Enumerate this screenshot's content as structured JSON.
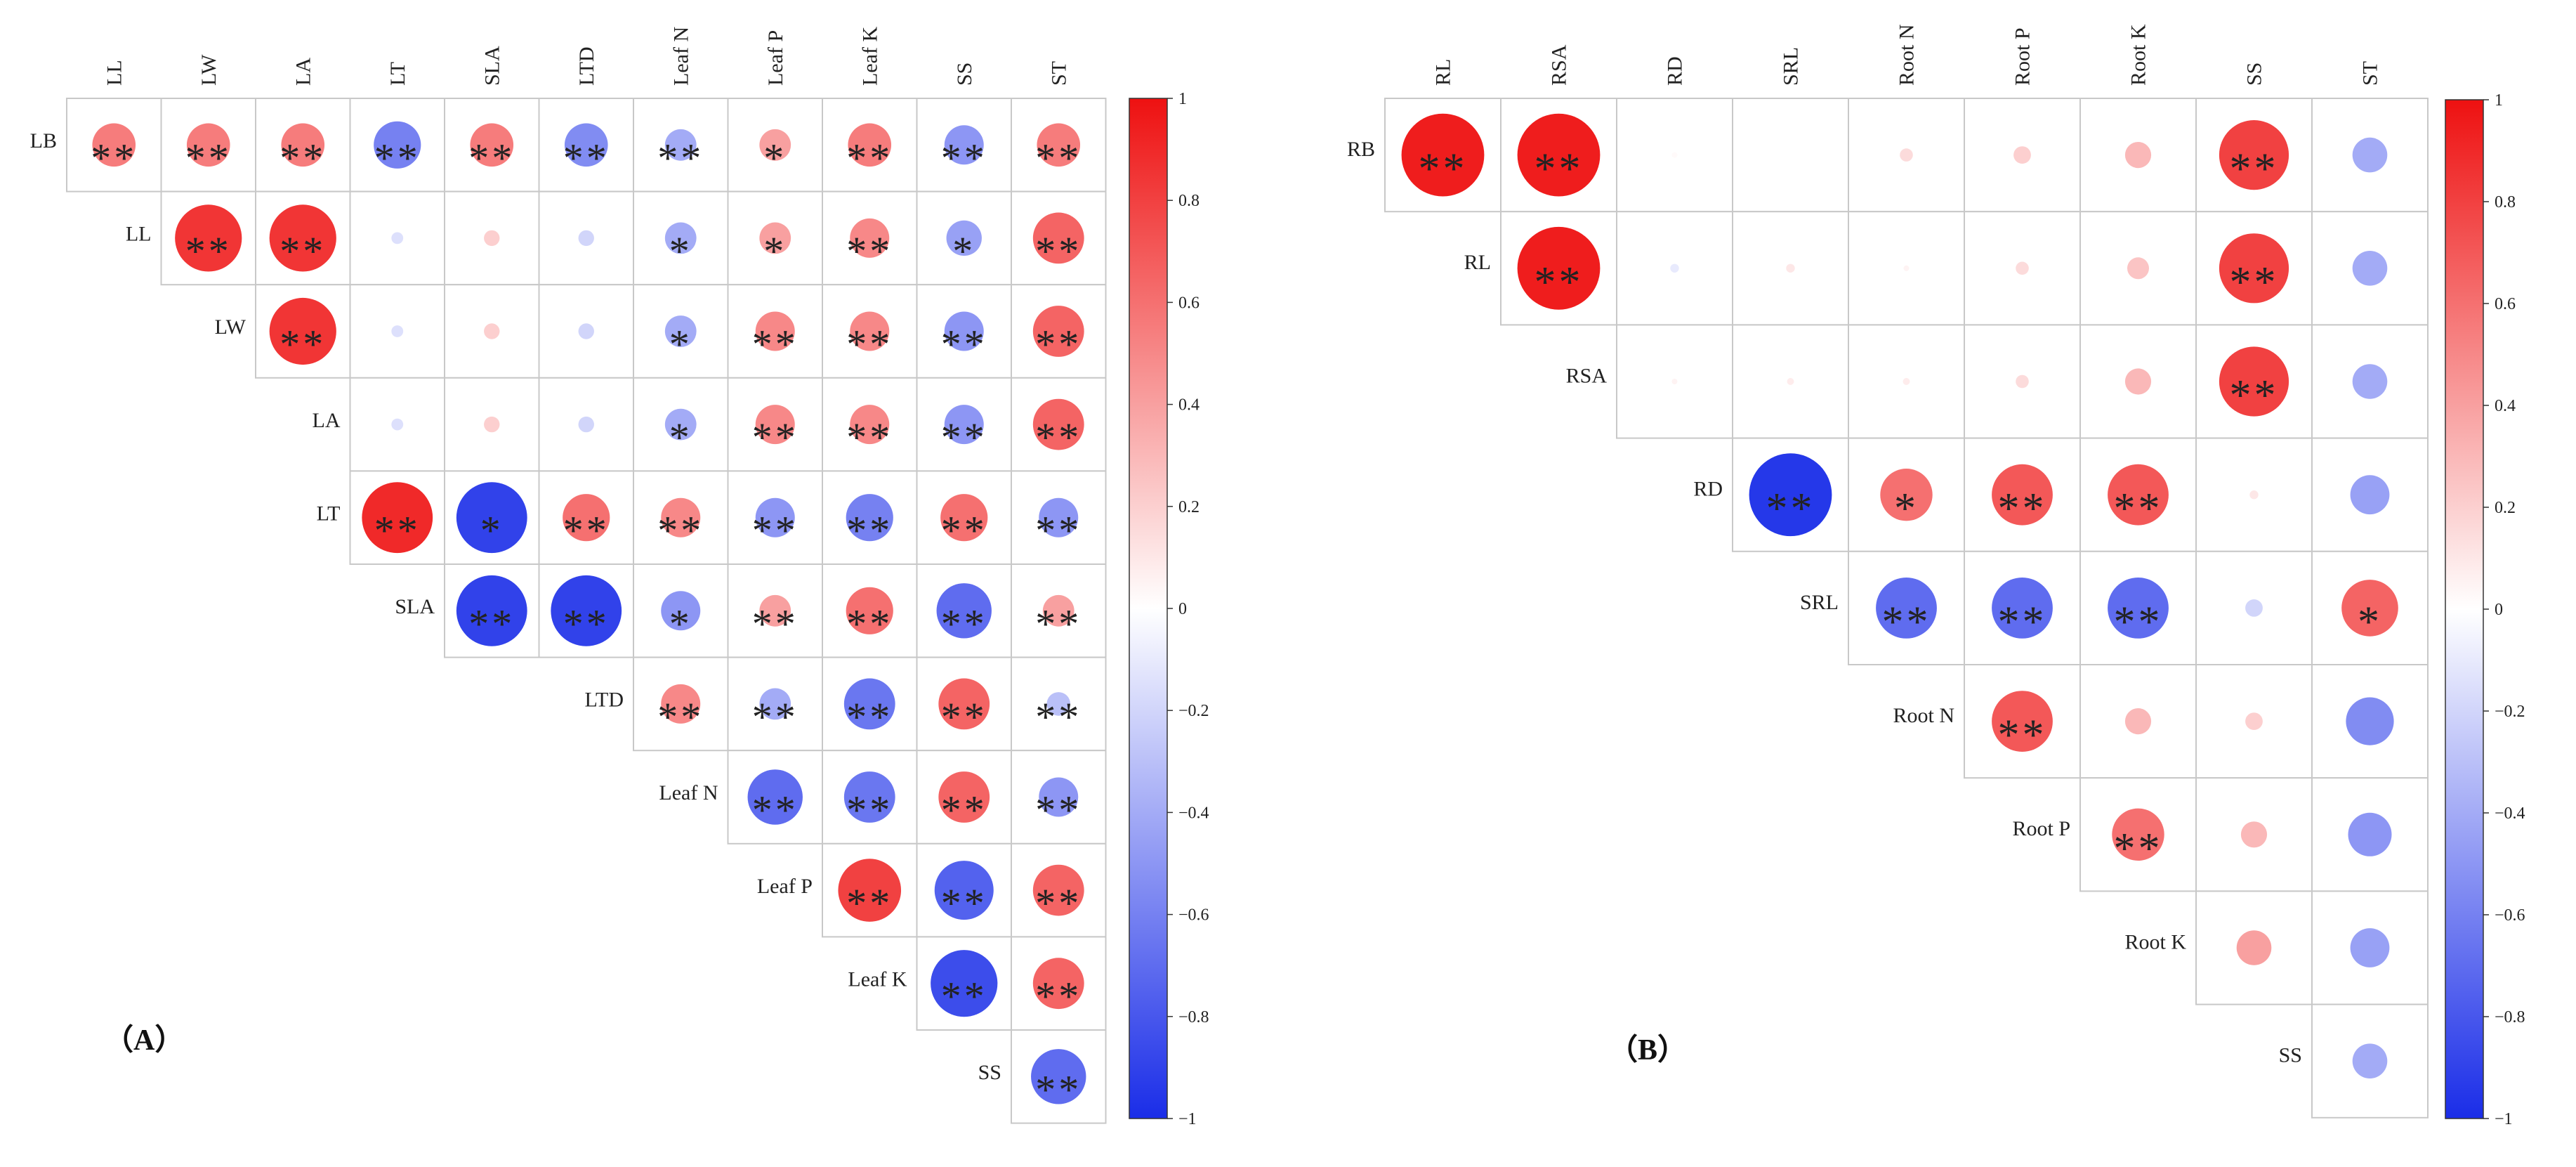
{
  "colors": {
    "positive": "#ee1111",
    "neutral": "#ffffff",
    "negative": "#1a2de8",
    "grid": "#c8c8c8",
    "text": "#222222"
  },
  "chart_data": [
    {
      "type": "heatmap",
      "panel_label": "（A）",
      "title": "",
      "xlabel": "",
      "ylabel": "",
      "x": [
        "LL",
        "LW",
        "LA",
        "LT",
        "SLA",
        "LTD",
        "Leaf N",
        "Leaf P",
        "Leaf K",
        "SS",
        "ST"
      ],
      "y": [
        "LB",
        "LL",
        "LW",
        "LA",
        "LT",
        "SLA",
        "LTD",
        "Leaf N",
        "Leaf P",
        "Leaf K",
        "SS"
      ],
      "values": [
        [
          0.55,
          0.55,
          0.55,
          -0.6,
          0.55,
          -0.55,
          -0.4,
          0.4,
          0.55,
          -0.5,
          0.55
        ],
        [
          null,
          0.85,
          0.85,
          -0.15,
          0.2,
          -0.2,
          -0.4,
          0.4,
          0.5,
          -0.45,
          0.65
        ],
        [
          null,
          null,
          0.85,
          -0.15,
          0.2,
          -0.2,
          -0.4,
          0.5,
          0.5,
          -0.5,
          0.65
        ],
        [
          null,
          null,
          null,
          -0.15,
          0.2,
          -0.2,
          -0.4,
          0.5,
          0.5,
          -0.5,
          0.65
        ],
        [
          null,
          null,
          null,
          0.9,
          -0.9,
          0.6,
          0.5,
          -0.5,
          -0.6,
          0.6,
          -0.5
        ],
        [
          null,
          null,
          null,
          null,
          -0.9,
          -0.9,
          -0.5,
          0.4,
          0.6,
          -0.7,
          0.4
        ],
        [
          null,
          null,
          null,
          null,
          null,
          null,
          0.5,
          -0.4,
          -0.65,
          0.65,
          -0.3
        ],
        [
          null,
          null,
          null,
          null,
          null,
          null,
          null,
          -0.7,
          -0.65,
          0.65,
          -0.5
        ],
        [
          null,
          null,
          null,
          null,
          null,
          null,
          null,
          null,
          0.8,
          -0.75,
          0.65
        ],
        [
          null,
          null,
          null,
          null,
          null,
          null,
          null,
          null,
          null,
          -0.85,
          0.65
        ],
        [
          null,
          null,
          null,
          null,
          null,
          null,
          null,
          null,
          null,
          null,
          -0.7
        ]
      ],
      "significance": [
        [
          "**",
          "**",
          "**",
          "**",
          "**",
          "**",
          "**",
          "*",
          "**",
          "**",
          "**"
        ],
        [
          "",
          "**",
          "**",
          "",
          "",
          "",
          "*",
          "*",
          "**",
          "*",
          "**"
        ],
        [
          "",
          "",
          "**",
          "",
          "",
          "",
          "*",
          "**",
          "**",
          "**",
          "**"
        ],
        [
          "",
          "",
          "",
          "",
          "",
          "",
          "*",
          "**",
          "**",
          "**",
          "**"
        ],
        [
          "",
          "",
          "",
          "**",
          "*",
          "**",
          "**",
          "**",
          "**",
          "**",
          "**"
        ],
        [
          "",
          "",
          "",
          "",
          "**",
          "**",
          "*",
          "**",
          "**",
          "**",
          "**"
        ],
        [
          "",
          "",
          "",
          "",
          "",
          "",
          "**",
          "**",
          "**",
          "**",
          "**"
        ],
        [
          "",
          "",
          "",
          "",
          "",
          "",
          "",
          "**",
          "**",
          "**",
          "**"
        ],
        [
          "",
          "",
          "",
          "",
          "",
          "",
          "",
          "",
          "**",
          "**",
          "**"
        ],
        [
          "",
          "",
          "",
          "",
          "",
          "",
          "",
          "",
          "",
          "**",
          "**"
        ],
        [
          "",
          "",
          "",
          "",
          "",
          "",
          "",
          "",
          "",
          "",
          "**"
        ]
      ],
      "colorbar": {
        "ticks": [
          1,
          0.8,
          0.6,
          0.4,
          0.2,
          0,
          -0.2,
          -0.4,
          -0.6,
          -0.8,
          -1
        ],
        "tick_labels": [
          "1",
          "0.8",
          "0.6",
          "0.4",
          "0.2",
          "0",
          "−0.2",
          "−0.4",
          "−0.6",
          "−0.8",
          "−1"
        ],
        "range": [
          -1,
          1
        ]
      }
    },
    {
      "type": "heatmap",
      "panel_label": "（B）",
      "title": "",
      "xlabel": "",
      "ylabel": "",
      "x": [
        "RL",
        "RSA",
        "RD",
        "SRL",
        "Root N",
        "Root P",
        "Root K",
        "SS",
        "ST"
      ],
      "y": [
        "RB",
        "RL",
        "RSA",
        "RD",
        "SRL",
        "Root N",
        "Root P",
        "Root K",
        "SS"
      ],
      "values": [
        [
          0.95,
          0.95,
          0.02,
          0.0,
          0.15,
          0.2,
          0.3,
          0.8,
          -0.4
        ],
        [
          null,
          0.95,
          -0.1,
          0.1,
          0.05,
          0.15,
          0.25,
          0.8,
          -0.4
        ],
        [
          null,
          null,
          0.05,
          0.08,
          0.08,
          0.15,
          0.3,
          0.8,
          -0.4
        ],
        [
          null,
          null,
          null,
          -0.95,
          0.6,
          0.7,
          0.7,
          0.1,
          -0.45
        ],
        [
          null,
          null,
          null,
          null,
          -0.7,
          -0.7,
          -0.7,
          -0.2,
          0.65
        ],
        [
          null,
          null,
          null,
          null,
          null,
          0.7,
          0.3,
          0.2,
          -0.55
        ],
        [
          null,
          null,
          null,
          null,
          null,
          null,
          0.6,
          0.3,
          -0.5
        ],
        [
          null,
          null,
          null,
          null,
          null,
          null,
          null,
          0.4,
          -0.45
        ],
        [
          null,
          null,
          null,
          null,
          null,
          null,
          null,
          null,
          -0.4
        ]
      ],
      "significance": [
        [
          "**",
          "**",
          "",
          "",
          "",
          "",
          "",
          "**",
          ""
        ],
        [
          "",
          "**",
          "",
          "",
          "",
          "",
          "",
          "**",
          ""
        ],
        [
          "",
          "",
          "",
          "",
          "",
          "",
          "",
          "**",
          ""
        ],
        [
          "",
          "",
          "",
          "**",
          "*",
          "**",
          "**",
          "",
          ""
        ],
        [
          "",
          "",
          "",
          "",
          "**",
          "**",
          "**",
          "",
          "*"
        ],
        [
          "",
          "",
          "",
          "",
          "",
          "**",
          "",
          "",
          ""
        ],
        [
          "",
          "",
          "",
          "",
          "",
          "",
          "**",
          "",
          ""
        ],
        [
          "",
          "",
          "",
          "",
          "",
          "",
          "",
          "",
          ""
        ],
        [
          "",
          "",
          "",
          "",
          "",
          "",
          "",
          "",
          ""
        ]
      ],
      "colorbar": {
        "ticks": [
          1,
          0.8,
          0.6,
          0.4,
          0.2,
          0,
          -0.2,
          -0.4,
          -0.6,
          -0.8,
          -1
        ],
        "tick_labels": [
          "1",
          "0.8",
          "0.6",
          "0.4",
          "0.2",
          "0",
          "−0.2",
          "−0.4",
          "−0.6",
          "−0.8",
          "−1"
        ],
        "range": [
          -1,
          1
        ]
      }
    }
  ]
}
